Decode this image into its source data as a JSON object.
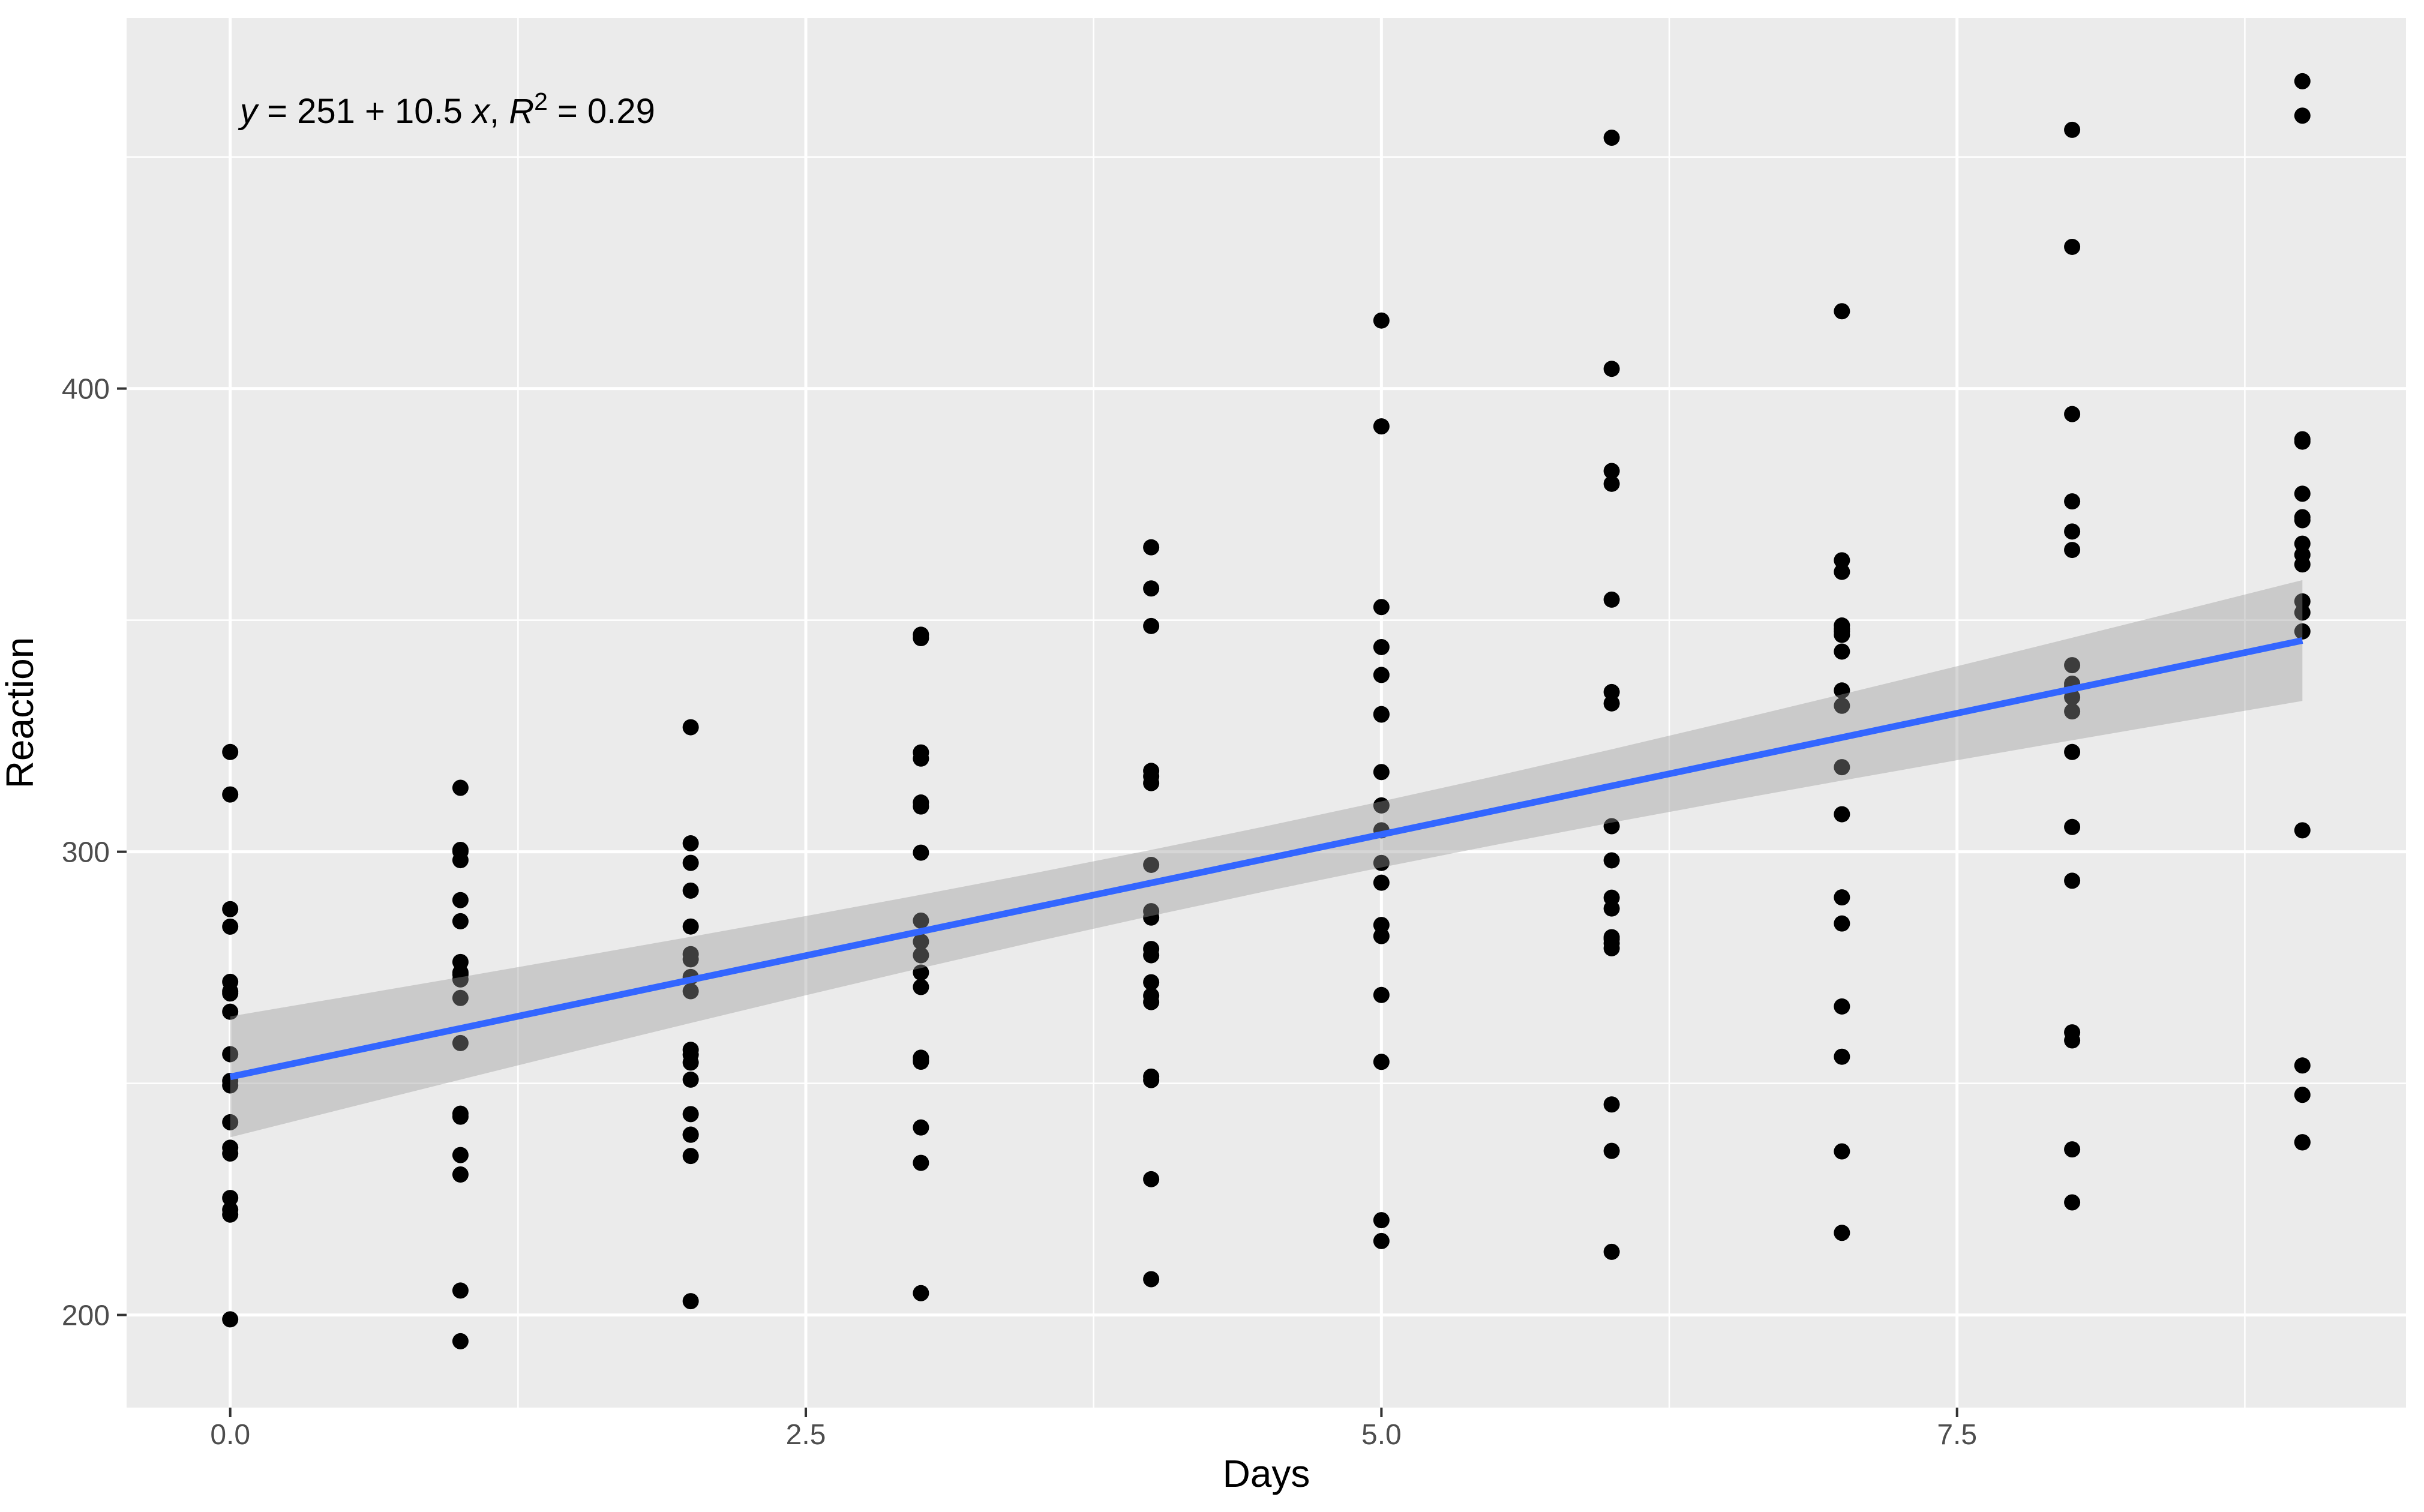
{
  "chart_data": {
    "type": "scatter",
    "title": "",
    "annotation": {
      "full": "y = 251 + 10.5 x, R² = 0.29",
      "parts": [
        {
          "t": "y",
          "italic": true,
          "sup": false
        },
        {
          "t": " = 251 + 10.5 ",
          "italic": false,
          "sup": false
        },
        {
          "t": "x",
          "italic": true,
          "sup": false
        },
        {
          "t": ", ",
          "italic": false,
          "sup": false
        },
        {
          "t": "R",
          "italic": true,
          "sup": false
        },
        {
          "t": "2",
          "italic": false,
          "sup": true
        },
        {
          "t": " = 0.29",
          "italic": false,
          "sup": false
        }
      ]
    },
    "x_axis": {
      "title": "Days",
      "lim": [
        -0.45,
        9.45
      ],
      "ticks": [
        {
          "value": 0,
          "label": "0.0"
        },
        {
          "value": 2.5,
          "label": "2.5"
        },
        {
          "value": 5,
          "label": "5.0"
        },
        {
          "value": 7.5,
          "label": "7.5"
        }
      ],
      "minor_gridlines": [
        1.25,
        3.75,
        6.25,
        8.75
      ]
    },
    "y_axis": {
      "title": "Reaction",
      "lim": [
        180,
        480
      ],
      "ticks": [
        {
          "value": 200,
          "label": "200"
        },
        {
          "value": 300,
          "label": "300"
        },
        {
          "value": 400,
          "label": "400"
        }
      ],
      "minor_gridlines": [
        250,
        350,
        450
      ]
    },
    "grid": true,
    "legend": "none",
    "regression": {
      "intercept": 251.405,
      "slope": 10.467,
      "r_squared": 0.29,
      "x_range": [
        0,
        9
      ]
    },
    "ci_band": {
      "x": [
        0,
        0.5,
        1,
        1.5,
        2,
        2.5,
        3,
        3.5,
        4,
        4.5,
        5,
        5.5,
        6,
        6.5,
        7,
        7.5,
        8,
        8.5,
        9
      ],
      "fit": [
        251.41,
        256.64,
        261.87,
        267.11,
        272.34,
        277.57,
        282.81,
        288.04,
        293.27,
        298.51,
        303.74,
        308.97,
        314.21,
        319.44,
        324.67,
        329.91,
        335.14,
        340.37,
        345.61
      ],
      "upper": [
        264.45,
        268.67,
        272.93,
        277.26,
        281.64,
        286.12,
        290.72,
        295.47,
        300.4,
        305.53,
        310.87,
        316.4,
        322.12,
        327.99,
        333.98,
        340.05,
        346.2,
        352.41,
        358.65
      ],
      "lower": [
        238.36,
        244.61,
        250.81,
        256.96,
        263.03,
        269.02,
        274.89,
        280.61,
        286.15,
        291.49,
        296.62,
        301.54,
        306.29,
        310.89,
        315.37,
        319.76,
        324.08,
        328.34,
        332.56
      ]
    },
    "points": [
      [
        0,
        249.56
      ],
      [
        1,
        258.7
      ],
      [
        2,
        250.8
      ],
      [
        3,
        321.44
      ],
      [
        4,
        356.85
      ],
      [
        5,
        414.69
      ],
      [
        6,
        382.2
      ],
      [
        7,
        290.15
      ],
      [
        8,
        430.59
      ],
      [
        9,
        466.35
      ],
      [
        0,
        222.73
      ],
      [
        1,
        205.27
      ],
      [
        2,
        202.98
      ],
      [
        3,
        204.71
      ],
      [
        4,
        207.72
      ],
      [
        5,
        215.96
      ],
      [
        6,
        213.63
      ],
      [
        7,
        217.73
      ],
      [
        8,
        224.3
      ],
      [
        9,
        237.31
      ],
      [
        0,
        199.05
      ],
      [
        1,
        194.33
      ],
      [
        2,
        234.32
      ],
      [
        3,
        232.84
      ],
      [
        4,
        229.31
      ],
      [
        5,
        220.46
      ],
      [
        6,
        235.42
      ],
      [
        7,
        255.75
      ],
      [
        8,
        261.01
      ],
      [
        9,
        247.52
      ],
      [
        0,
        321.54
      ],
      [
        1,
        300.4
      ],
      [
        2,
        283.86
      ],
      [
        3,
        285.13
      ],
      [
        4,
        285.8
      ],
      [
        5,
        297.59
      ],
      [
        6,
        280.24
      ],
      [
        7,
        318.26
      ],
      [
        8,
        305.35
      ],
      [
        9,
        354.05
      ],
      [
        0,
        287.61
      ],
      [
        1,
        285.0
      ],
      [
        2,
        301.82
      ],
      [
        3,
        320.12
      ],
      [
        4,
        316.28
      ],
      [
        5,
        293.32
      ],
      [
        6,
        290.08
      ],
      [
        7,
        334.82
      ],
      [
        8,
        293.75
      ],
      [
        9,
        371.58
      ],
      [
        0,
        234.86
      ],
      [
        1,
        242.81
      ],
      [
        2,
        272.96
      ],
      [
        3,
        309.77
      ],
      [
        4,
        317.46
      ],
      [
        5,
        310.0
      ],
      [
        6,
        454.16
      ],
      [
        7,
        346.83
      ],
      [
        8,
        330.3
      ],
      [
        9,
        253.86
      ],
      [
        0,
        283.84
      ],
      [
        1,
        289.56
      ],
      [
        2,
        276.77
      ],
      [
        3,
        299.81
      ],
      [
        4,
        297.17
      ],
      [
        5,
        338.17
      ],
      [
        6,
        332.03
      ],
      [
        7,
        348.84
      ],
      [
        8,
        333.36
      ],
      [
        9,
        362.04
      ],
      [
        0,
        265.47
      ],
      [
        1,
        276.2
      ],
      [
        2,
        243.36
      ],
      [
        3,
        254.67
      ],
      [
        4,
        279.02
      ],
      [
        5,
        284.19
      ],
      [
        6,
        305.52
      ],
      [
        7,
        331.52
      ],
      [
        8,
        335.75
      ],
      [
        9,
        377.3
      ],
      [
        0,
        241.61
      ],
      [
        1,
        273.95
      ],
      [
        2,
        254.49
      ],
      [
        3,
        270.8
      ],
      [
        4,
        251.45
      ],
      [
        5,
        254.64
      ],
      [
        6,
        245.45
      ],
      [
        7,
        235.31
      ],
      [
        8,
        235.75
      ],
      [
        9,
        237.25
      ],
      [
        0,
        312.37
      ],
      [
        1,
        313.81
      ],
      [
        2,
        291.61
      ],
      [
        3,
        346.12
      ],
      [
        4,
        365.73
      ],
      [
        5,
        391.84
      ],
      [
        6,
        404.26
      ],
      [
        7,
        416.69
      ],
      [
        8,
        455.86
      ],
      [
        9,
        458.92
      ],
      [
        0,
        236.1
      ],
      [
        1,
        230.32
      ],
      [
        2,
        238.93
      ],
      [
        3,
        254.92
      ],
      [
        4,
        250.71
      ],
      [
        5,
        269.08
      ],
      [
        6,
        281.56
      ],
      [
        7,
        308.1
      ],
      [
        8,
        336.28
      ],
      [
        9,
        351.65
      ],
      [
        0,
        256.3
      ],
      [
        1,
        243.45
      ],
      [
        2,
        256.2
      ],
      [
        3,
        255.53
      ],
      [
        4,
        268.92
      ],
      [
        5,
        329.72
      ],
      [
        6,
        379.44
      ],
      [
        7,
        362.92
      ],
      [
        8,
        394.49
      ],
      [
        9,
        389.05
      ],
      [
        0,
        250.53
      ],
      [
        1,
        300.06
      ],
      [
        2,
        269.89
      ],
      [
        3,
        280.59
      ],
      [
        4,
        271.82
      ],
      [
        5,
        304.63
      ],
      [
        6,
        287.75
      ],
      [
        7,
        266.6
      ],
      [
        8,
        321.54
      ],
      [
        9,
        347.57
      ],
      [
        0,
        221.68
      ],
      [
        1,
        298.19
      ],
      [
        2,
        326.88
      ],
      [
        3,
        346.86
      ],
      [
        4,
        348.74
      ],
      [
        5,
        352.83
      ],
      [
        6,
        354.43
      ],
      [
        7,
        360.43
      ],
      [
        8,
        375.64
      ],
      [
        9,
        388.54
      ],
      [
        0,
        271.92
      ],
      [
        1,
        268.44
      ],
      [
        2,
        257.24
      ],
      [
        3,
        277.66
      ],
      [
        4,
        314.82
      ],
      [
        5,
        317.21
      ],
      [
        6,
        298.14
      ],
      [
        7,
        348.12
      ],
      [
        8,
        340.28
      ],
      [
        9,
        366.51
      ],
      [
        0,
        225.26
      ],
      [
        1,
        234.52
      ],
      [
        2,
        238.9
      ],
      [
        3,
        240.47
      ],
      [
        4,
        267.54
      ],
      [
        5,
        344.19
      ],
      [
        6,
        281.15
      ],
      [
        7,
        347.59
      ],
      [
        8,
        365.16
      ],
      [
        9,
        372.23
      ],
      [
        0,
        269.88
      ],
      [
        1,
        272.44
      ],
      [
        2,
        277.9
      ],
      [
        3,
        273.92
      ],
      [
        4,
        277.66
      ],
      [
        5,
        281.79
      ],
      [
        6,
        279.17
      ],
      [
        7,
        284.51
      ],
      [
        8,
        259.27
      ],
      [
        9,
        304.63
      ],
      [
        0,
        269.41
      ],
      [
        1,
        273.47
      ],
      [
        2,
        297.6
      ],
      [
        3,
        310.63
      ],
      [
        4,
        287.17
      ],
      [
        5,
        329.61
      ],
      [
        6,
        334.48
      ],
      [
        7,
        343.22
      ],
      [
        8,
        369.14
      ],
      [
        9,
        364.12
      ]
    ],
    "colors": {
      "background": "#FFFFFF",
      "panel": "#EBEBEB",
      "grid": "#FFFFFF",
      "point": "#000000",
      "regression_line": "#3366FF",
      "ci_band": "#999999",
      "ci_band_opacity": 0.4,
      "tick_label": "#4D4D4D",
      "tick_mark": "#333333",
      "axis_title": "#000000"
    }
  }
}
